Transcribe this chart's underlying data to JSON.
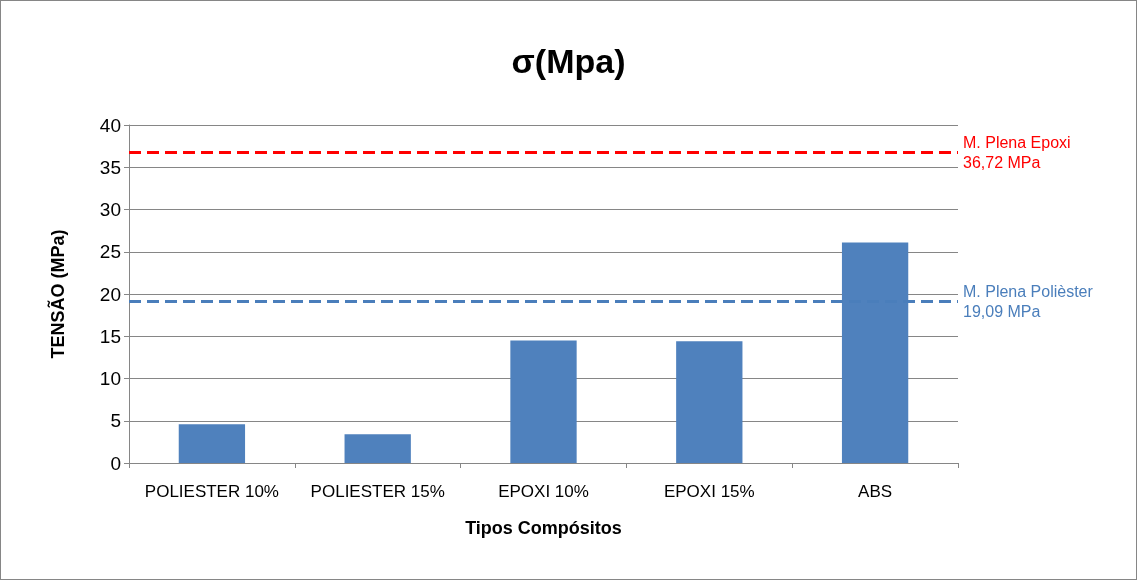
{
  "chart_data": {
    "type": "bar",
    "title": "σ(Mpa)",
    "xlabel": "Tipos Compósitos",
    "ylabel": "TENSÃO (MPa)",
    "categories": [
      "POLIESTER 10%",
      "POLIESTER 15%",
      "EPOXI 10%",
      "EPOXI 15%",
      "ABS"
    ],
    "values": [
      4.6,
      3.4,
      14.5,
      14.4,
      26.1
    ],
    "color": "#4f81bd",
    "ylim": [
      0,
      40
    ],
    "yticks": [
      0,
      5,
      10,
      15,
      20,
      25,
      30,
      35,
      40
    ],
    "grid": "y",
    "ref_lines": [
      {
        "axis": "y",
        "value": 36.72,
        "label": "M. Plena Epoxi\n36,72 MPa",
        "color": "#ff0000",
        "line_style": "dashed"
      },
      {
        "axis": "y",
        "value": 19.09,
        "label": "M. Plena Polièster\n19,09 MPa",
        "color": "#4a7ebb",
        "line_style": "dashed"
      }
    ]
  }
}
